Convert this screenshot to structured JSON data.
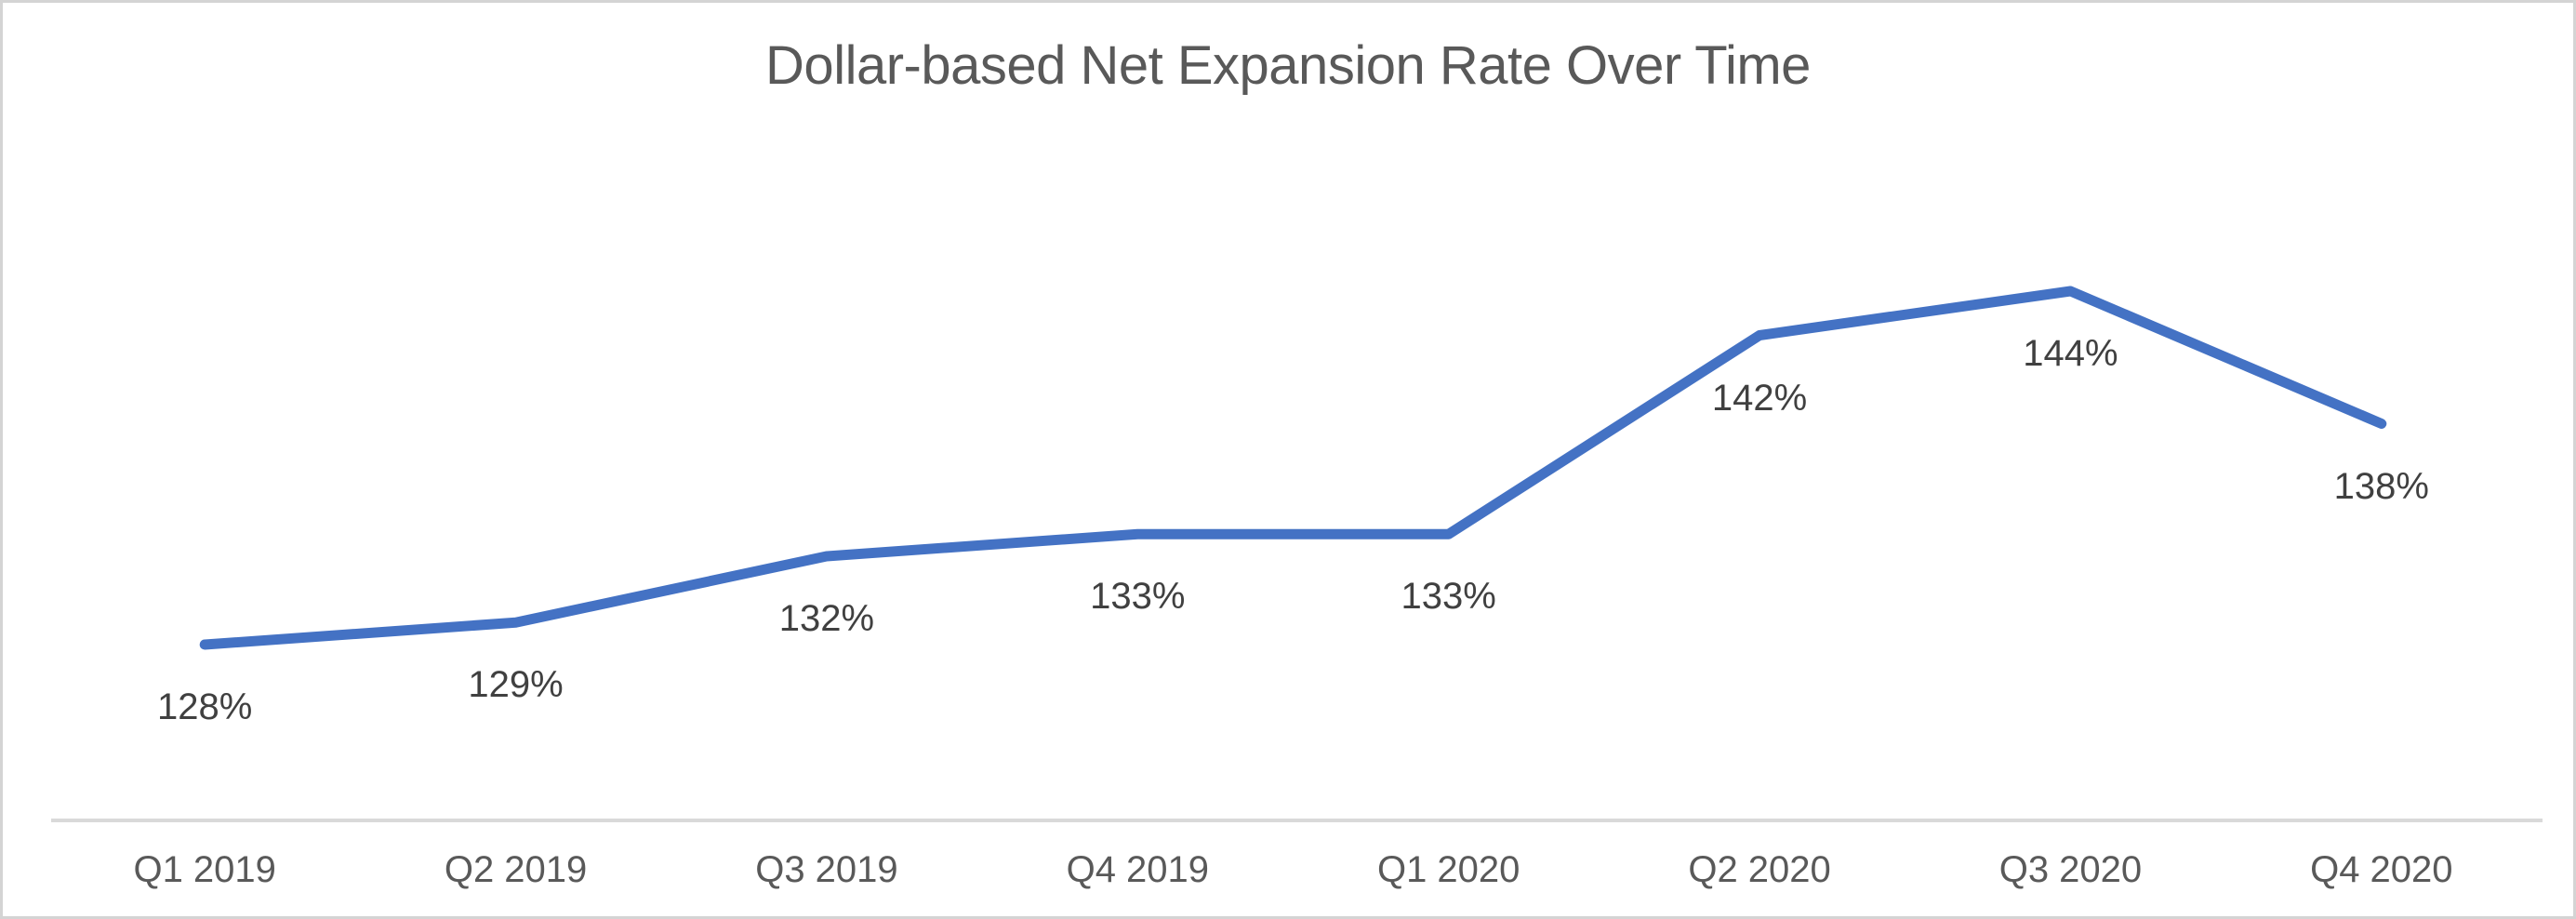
{
  "chart_data": {
    "type": "line",
    "title": "Dollar-based Net Expansion Rate Over Time",
    "categories": [
      "Q1 2019",
      "Q2 2019",
      "Q3 2019",
      "Q4 2019",
      "Q1 2020",
      "Q2 2020",
      "Q3 2020",
      "Q4 2020"
    ],
    "values": [
      128,
      129,
      132,
      133,
      133,
      142,
      144,
      138
    ],
    "data_labels": [
      "128%",
      "129%",
      "132%",
      "133%",
      "133%",
      "142%",
      "144%",
      "138%"
    ],
    "data_labels_position": "below",
    "xlabel": "",
    "ylabel": "",
    "ylim": [
      120,
      155
    ],
    "grid": false,
    "legend": "none",
    "colors": {
      "line": "#4472C4",
      "title_text": "#595959",
      "data_label_text": "#404040",
      "axis_label_text": "#595959",
      "axis_line": "#D9D9D9",
      "background": "#FFFFFF",
      "frame_border": "#D4D4D4"
    }
  }
}
